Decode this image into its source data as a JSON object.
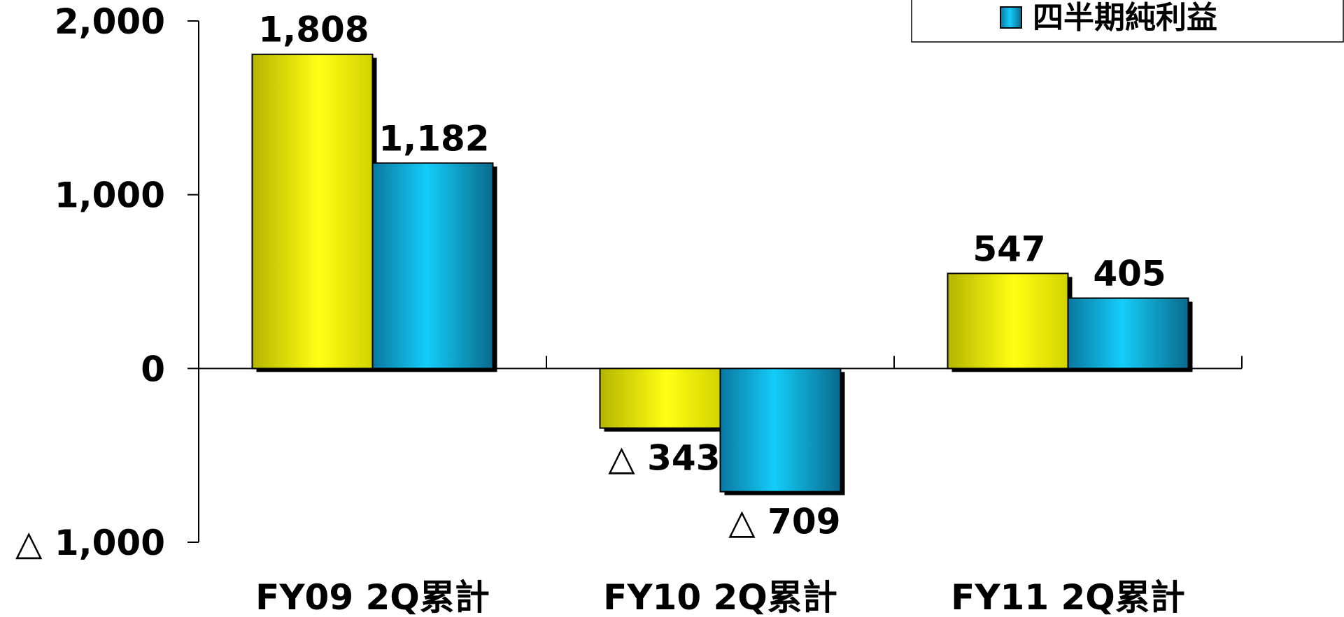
{
  "chart_data": {
    "type": "bar",
    "categories": [
      "FY09 2Q累計",
      "FY10 2Q累計",
      "FY11 2Q累計"
    ],
    "series": [
      {
        "name": "",
        "color": "#f2f200",
        "values": [
          1808,
          -343,
          547
        ]
      },
      {
        "name": "四半期純利益",
        "color": "#14c8f5",
        "values": [
          1182,
          -709,
          405
        ]
      }
    ],
    "data_labels": [
      [
        "1,808",
        "△ 343",
        "547"
      ],
      [
        "1,182",
        "△ 709",
        "405"
      ]
    ],
    "y_ticks": [
      {
        "value": 2000,
        "label": "2,000"
      },
      {
        "value": 1000,
        "label": "1,000"
      },
      {
        "value": 0,
        "label": "0"
      },
      {
        "value": -1000,
        "label": "△ 1,000"
      }
    ],
    "ylim": [
      -1000,
      2000
    ],
    "grid": false,
    "legend_position": "top-right"
  }
}
